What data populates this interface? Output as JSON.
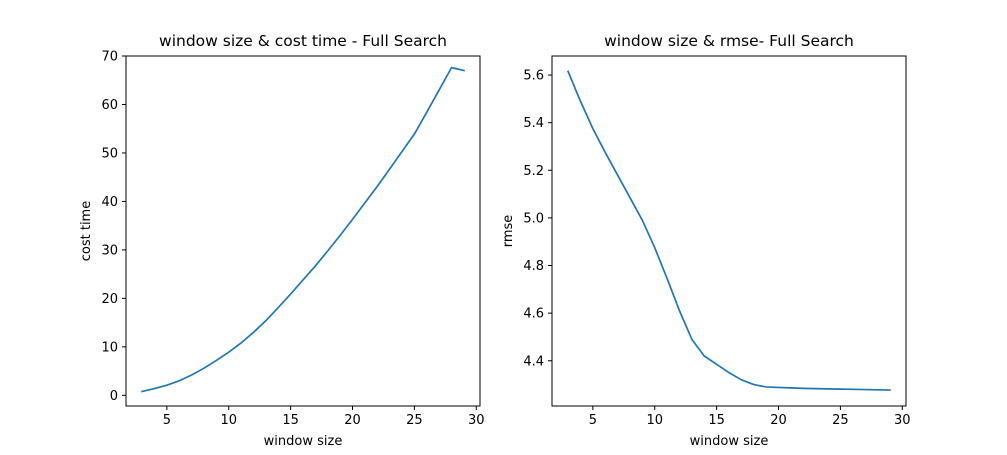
{
  "colors": {
    "series": "#1f77b4",
    "axes": "#000000",
    "background": "#ffffff"
  },
  "chart_data": [
    {
      "type": "line",
      "title": "window size & cost time - Full Search",
      "xlabel": "window size",
      "ylabel": "cost time",
      "xlim": [
        1.7,
        30.3
      ],
      "ylim": [
        -2.2,
        70
      ],
      "xticks": [
        5,
        10,
        15,
        20,
        25,
        30
      ],
      "yticks": [
        0,
        10,
        20,
        30,
        40,
        50,
        60,
        70
      ],
      "xtick_labels": [
        "5",
        "10",
        "15",
        "20",
        "25",
        "30"
      ],
      "ytick_labels": [
        "0",
        "10",
        "20",
        "30",
        "40",
        "50",
        "60",
        "70"
      ],
      "grid": false,
      "legend": "none",
      "x": [
        3,
        4,
        5,
        6,
        7,
        8,
        9,
        10,
        11,
        12,
        13,
        14,
        15,
        16,
        17,
        18,
        19,
        20,
        21,
        22,
        23,
        24,
        25,
        26,
        27,
        28,
        29
      ],
      "series": [
        {
          "values": [
            0.8,
            1.4,
            2.1,
            3.0,
            4.2,
            5.6,
            7.2,
            8.9,
            10.8,
            13.0,
            15.4,
            18.1,
            20.9,
            23.8,
            26.7,
            29.8,
            33.0,
            36.3,
            39.7,
            43.1,
            46.7,
            50.3,
            53.9,
            58.4,
            63.0,
            67.6,
            67.0
          ]
        }
      ]
    },
    {
      "type": "line",
      "title": "window size & rmse- Full Search",
      "xlabel": "window size",
      "ylabel": "rmse",
      "xlim": [
        1.7,
        30.3
      ],
      "ylim": [
        4.21,
        5.68
      ],
      "xticks": [
        5,
        10,
        15,
        20,
        25,
        30
      ],
      "yticks": [
        4.4,
        4.6,
        4.8,
        5.0,
        5.2,
        5.4,
        5.6
      ],
      "xtick_labels": [
        "5",
        "10",
        "15",
        "20",
        "25",
        "30"
      ],
      "ytick_labels": [
        "4.4",
        "4.6",
        "4.8",
        "5.0",
        "5.2",
        "5.4",
        "5.6"
      ],
      "grid": false,
      "legend": "none",
      "x": [
        3,
        4,
        5,
        6,
        7,
        8,
        9,
        10,
        11,
        12,
        13,
        14,
        15,
        16,
        17,
        18,
        19,
        20,
        21,
        22,
        23,
        24,
        25,
        26,
        27,
        28,
        29
      ],
      "series": [
        {
          "values": [
            5.615,
            5.49,
            5.375,
            5.275,
            5.18,
            5.085,
            4.99,
            4.875,
            4.745,
            4.61,
            4.49,
            4.42,
            4.385,
            4.35,
            4.32,
            4.3,
            4.29,
            4.288,
            4.286,
            4.284,
            4.283,
            4.282,
            4.281,
            4.28,
            4.279,
            4.278,
            4.277
          ]
        }
      ]
    }
  ]
}
